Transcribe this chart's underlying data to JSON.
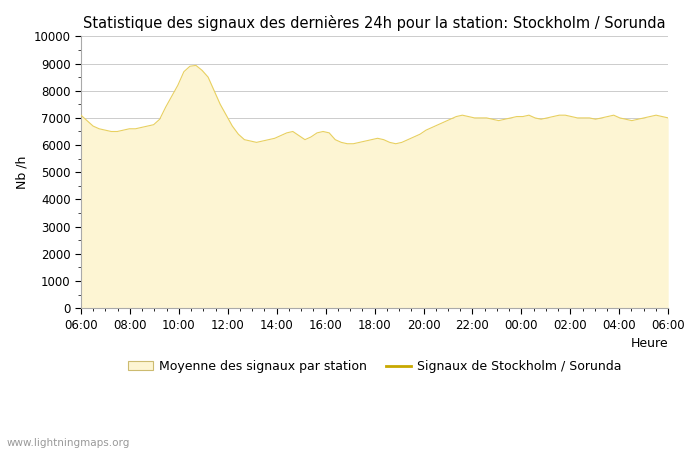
{
  "title": "Statistique des signaux des dernières 24h pour la station: Stockholm / Sorunda",
  "xlabel": "Heure",
  "ylabel": "Nb /h",
  "ylim": [
    0,
    10000
  ],
  "yticks": [
    0,
    1000,
    2000,
    3000,
    4000,
    5000,
    6000,
    7000,
    8000,
    9000,
    10000
  ],
  "xtick_labels": [
    "06:00",
    "08:00",
    "10:00",
    "12:00",
    "14:00",
    "16:00",
    "18:00",
    "20:00",
    "22:00",
    "00:00",
    "02:00",
    "04:00",
    "06:00"
  ],
  "fill_color": "#fdf5d3",
  "fill_edge_color": "#e8d060",
  "line_color": "#c8a800",
  "background_color": "#ffffff",
  "grid_color": "#cccccc",
  "watermark": "www.lightningmaps.org",
  "legend_label_fill": "Moyenne des signaux par station",
  "legend_label_line": "Signaux de Stockholm / Sorunda",
  "y": [
    7100,
    6900,
    6700,
    6600,
    6550,
    6500,
    6500,
    6550,
    6600,
    6600,
    6650,
    6700,
    6750,
    6950,
    7400,
    7800,
    8200,
    8700,
    8900,
    8930,
    8750,
    8500,
    8000,
    7500,
    7100,
    6700,
    6400,
    6200,
    6150,
    6100,
    6150,
    6200,
    6250,
    6350,
    6450,
    6500,
    6350,
    6200,
    6300,
    6450,
    6500,
    6450,
    6200,
    6100,
    6050,
    6050,
    6100,
    6150,
    6200,
    6250,
    6200,
    6100,
    6050,
    6100,
    6200,
    6300,
    6400,
    6550,
    6650,
    6750,
    6850,
    6950,
    7050,
    7100,
    7050,
    7000,
    7000,
    7000,
    6950,
    6900,
    6950,
    7000,
    7050,
    7050,
    7100,
    7000,
    6950,
    7000,
    7050,
    7100,
    7100,
    7050,
    7000,
    7000,
    7000,
    6950,
    7000,
    7050,
    7100,
    7000,
    6950,
    6900,
    6950,
    7000,
    7050,
    7100,
    7050,
    7000
  ]
}
